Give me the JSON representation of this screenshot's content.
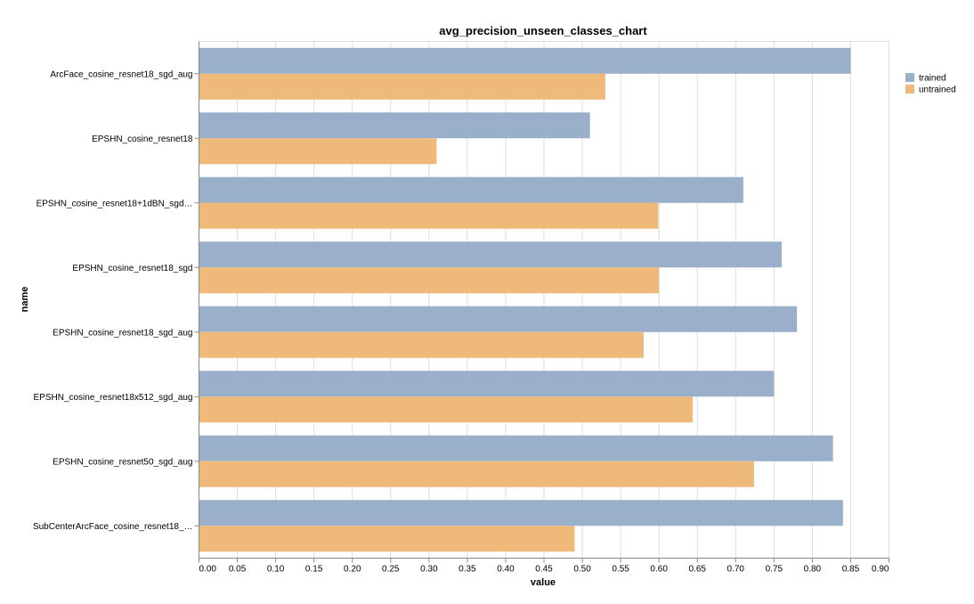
{
  "chart_data": {
    "type": "bar",
    "orientation": "horizontal",
    "title": "avg_precision_unseen_classes_chart",
    "xlabel": "value",
    "ylabel": "name",
    "xlim": [
      0,
      0.9
    ],
    "x_ticks": [
      "0.00",
      "0.05",
      "0.10",
      "0.15",
      "0.20",
      "0.25",
      "0.30",
      "0.35",
      "0.40",
      "0.45",
      "0.50",
      "0.55",
      "0.60",
      "0.65",
      "0.70",
      "0.75",
      "0.80",
      "0.85",
      "0.90"
    ],
    "grid": true,
    "legend_position": "right",
    "categories": [
      "ArcFace_cosine_resnet18_sgd_aug",
      "EPSHN_cosine_resnet18",
      "EPSHN_cosine_resnet18+1dBN_sgd…",
      "EPSHN_cosine_resnet18_sgd",
      "EPSHN_cosine_resnet18_sgd_aug",
      "EPSHN_cosine_resnet18x512_sgd_aug",
      "EPSHN_cosine_resnet50_sgd_aug",
      "SubCenterArcFace_cosine_resnet18_…"
    ],
    "series": [
      {
        "name": "trained",
        "color": "#9aafca",
        "values": [
          0.85,
          0.51,
          0.71,
          0.76,
          0.78,
          0.75,
          0.827,
          0.84
        ]
      },
      {
        "name": "untrained",
        "color": "#efb97a",
        "values": [
          0.53,
          0.31,
          0.599,
          0.6,
          0.58,
          0.644,
          0.724,
          0.49
        ]
      }
    ]
  }
}
